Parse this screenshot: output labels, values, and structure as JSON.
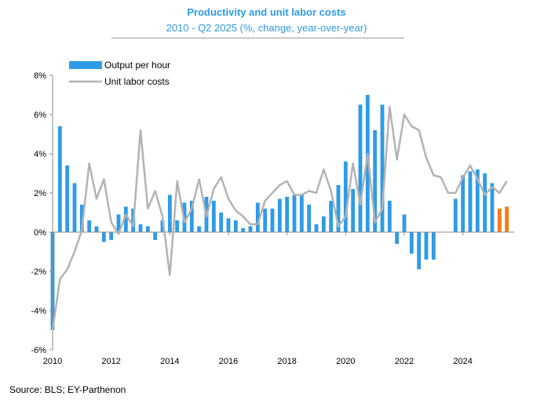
{
  "chart_data": {
    "type": "bar",
    "title": "Productivity and unit labor costs",
    "subtitle": "2010 - Q2 2025 (%, change, year-over-year)",
    "source": "Source: BLS; EY-Parthenon",
    "xlabel": "",
    "ylabel": "",
    "ylim": [
      -6,
      8
    ],
    "yticks": [
      -6,
      -4,
      -2,
      0,
      2,
      4,
      6,
      8
    ],
    "ytick_labels": [
      "-6%",
      "-4%",
      "-2%",
      "0%",
      "2%",
      "4%",
      "6%",
      "8%"
    ],
    "xticks": [
      2010,
      2012,
      2014,
      2016,
      2018,
      2020,
      2022,
      2024
    ],
    "xtick_labels": [
      "2010",
      "2012",
      "2014",
      "2016",
      "2018",
      "2020",
      "2022",
      "2024"
    ],
    "xlim": [
      2010,
      2025.75
    ],
    "colors": {
      "bar": "#2f9be6",
      "bar_highlight": "#f07c1e",
      "line": "#b3b3b3"
    },
    "highlight_from_index": 61,
    "series": [
      {
        "name": "Output per hour",
        "type": "bar",
        "quarters_start": 2010.0,
        "values": [
          -5.0,
          5.4,
          3.4,
          2.5,
          1.4,
          0.6,
          0.3,
          -0.5,
          -0.4,
          0.9,
          1.3,
          1.2,
          0.4,
          0.3,
          -0.4,
          0.6,
          1.9,
          0.6,
          1.5,
          1.6,
          0.3,
          1.8,
          1.6,
          1.0,
          0.7,
          0.6,
          0.2,
          0.3,
          1.5,
          1.2,
          1.2,
          1.7,
          1.8,
          1.9,
          1.9,
          1.4,
          0.4,
          0.8,
          1.6,
          2.4,
          3.6,
          2.2,
          6.5,
          7.0,
          5.2,
          6.5,
          1.6,
          -0.6,
          0.9,
          -1.1,
          -1.9,
          -1.4,
          -1.4,
          0,
          0,
          1.7,
          2.9,
          3.1,
          3.2,
          3.0,
          2.5,
          1.2,
          1.3
        ]
      },
      {
        "name": "Unit labor costs",
        "type": "line",
        "quarters_start": 2010.0,
        "values": [
          -5.0,
          -2.4,
          -1.9,
          -1.0,
          0.1,
          3.5,
          1.7,
          2.7,
          0.5,
          -0.1,
          0.9,
          0.3,
          5.2,
          1.2,
          2.1,
          0.8,
          -2.2,
          2.6,
          0.5,
          1.2,
          2.7,
          0.8,
          2.2,
          2.8,
          1.7,
          1.1,
          0.8,
          0.4,
          0.4,
          1.6,
          2.0,
          2.4,
          2.6,
          1.9,
          1.9,
          2.1,
          2.0,
          3.2,
          2.1,
          0.3,
          0.8,
          3.5,
          1.4,
          4.0,
          0.5,
          1.2,
          6.4,
          3.7,
          6.0,
          5.4,
          5.2,
          3.8,
          2.9,
          2.8,
          2.0,
          2.0,
          2.8,
          3.4,
          2.7,
          1.9,
          2.3,
          2.0,
          2.6
        ]
      }
    ]
  }
}
